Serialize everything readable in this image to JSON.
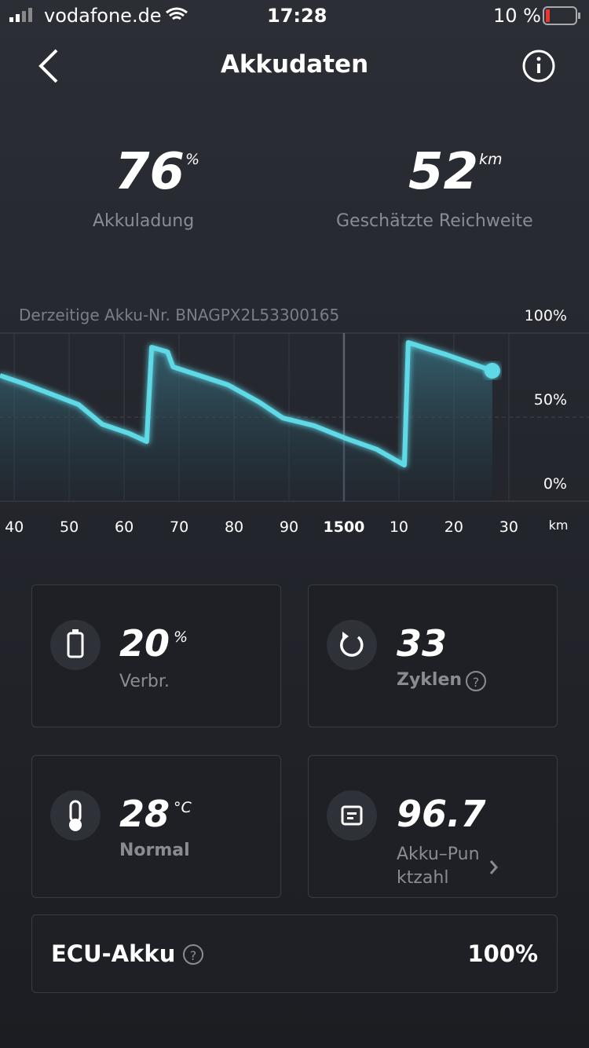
{
  "status_bar": {
    "carrier": "vodafone.de",
    "time": "17:28",
    "battery": "10 %"
  },
  "header": {
    "title": "Akkudaten"
  },
  "summary": [
    {
      "value": "76",
      "unit": "%",
      "label": "Akkuladung"
    },
    {
      "value": "52",
      "unit": "km",
      "label": "Geschätzte Reichweite"
    }
  ],
  "chart_data": {
    "type": "line",
    "subtitle": "Derzeitige Akku-Nr. BNAGPX2L53300165",
    "x_label": "km",
    "x": [
      1437.4,
      1441.7,
      1451.7,
      1456,
      1461,
      1464.1,
      1465,
      1467.9,
      1468.9,
      1478.9,
      1484.6,
      1488.9,
      1494.6,
      1500.3,
      1506,
      1511,
      1511.7,
      1518.9,
      1527
    ],
    "series": [
      {
        "color": "#5fd9e6",
        "values": [
          74.8,
          70,
          57.5,
          45.8,
          40.2,
          35.5,
          91.6,
          88.8,
          79.9,
          69.2,
          58.9,
          49.5,
          44.9,
          37.4,
          30.8,
          21.5,
          94.4,
          86.9,
          77.6
        ]
      }
    ],
    "xlim": [
      1437.4,
      1544.6
    ],
    "ylim": [
      0,
      100
    ],
    "xticks": [
      {
        "value": 1440,
        "label": "40"
      },
      {
        "value": 1450,
        "label": "50"
      },
      {
        "value": 1460,
        "label": "60"
      },
      {
        "value": 1470,
        "label": "70"
      },
      {
        "value": 1480,
        "label": "80"
      },
      {
        "value": 1490,
        "label": "90"
      },
      1500,
      {
        "value": 1510,
        "label": "10"
      },
      {
        "value": 1520,
        "label": "20"
      },
      {
        "value": 1530,
        "label": "30"
      }
    ],
    "yticks": [
      {
        "value": 0,
        "label": "0%"
      },
      {
        "value": 50,
        "label": "50%"
      },
      {
        "value": 100,
        "label": "100%"
      }
    ],
    "highlight_x": 1500,
    "grid": true
  },
  "cards": [
    {
      "value": "20",
      "unit": "%",
      "label": "Verbr."
    },
    {
      "value": "33",
      "label": "Zyklen"
    },
    {
      "value": "28",
      "unit": "°C",
      "label": "Normal"
    },
    {
      "value": "96.7",
      "label": "Akku–Punktzahl"
    }
  ],
  "ecu": {
    "label": "ECU-Akku",
    "value": "100%"
  }
}
